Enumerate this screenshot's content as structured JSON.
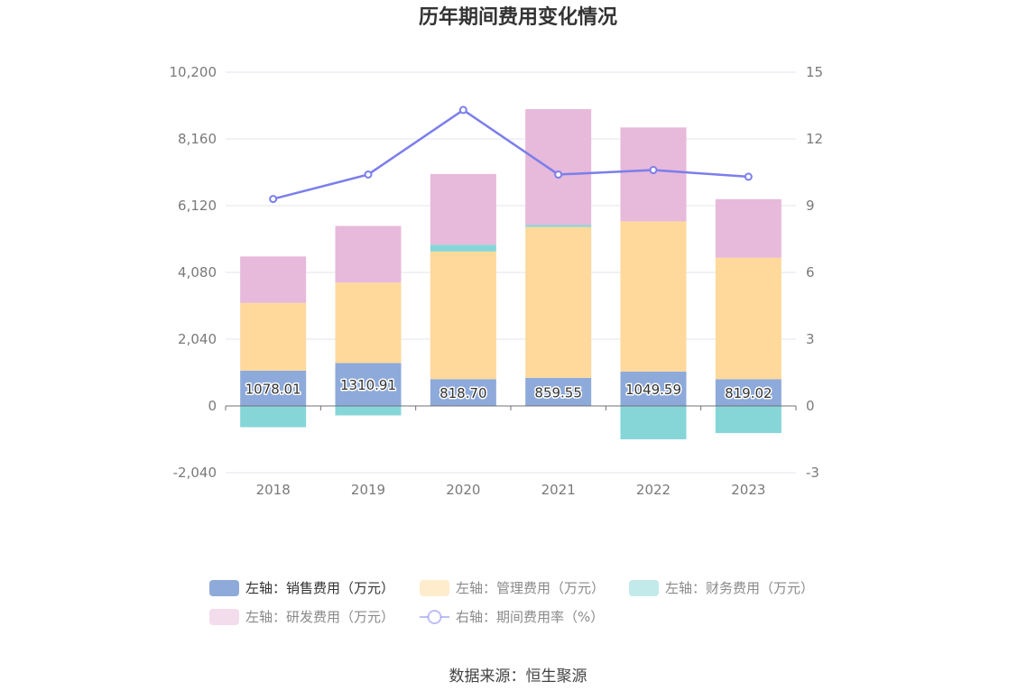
{
  "chart_data": {
    "type": "bar",
    "title": "历年期间费用变化情况",
    "categories": [
      "2018",
      "2019",
      "2020",
      "2021",
      "2022",
      "2023"
    ],
    "left_axis": {
      "ticks": [
        "-2,040",
        "0",
        "2,040",
        "4,080",
        "6,120",
        "8,160",
        "10,200"
      ],
      "range": [
        -2040,
        10200
      ]
    },
    "right_axis": {
      "ticks": [
        "-3",
        "0",
        "3",
        "6",
        "9",
        "12",
        "15"
      ],
      "range": [
        -3,
        15
      ]
    },
    "grid": true,
    "stacked": true,
    "series": [
      {
        "name": "左轴：销售费用（万元）",
        "axis": "left",
        "type": "bar",
        "color": "#8eaadb",
        "values": [
          1078.01,
          1310.91,
          818.7,
          859.55,
          1049.59,
          819.02
        ],
        "labels": [
          "1078.01",
          "1310.91",
          "818.70",
          "859.55",
          "1049.59",
          "819.02"
        ]
      },
      {
        "name": "左轴：管理费用（万元）",
        "axis": "left",
        "type": "bar",
        "color": "#fed99b",
        "values": [
          2070,
          2460,
          3900,
          4610,
          4590,
          3710
        ]
      },
      {
        "name": "左轴：财务费用（万元）",
        "axis": "left",
        "type": "bar",
        "color": "#86d6d8",
        "values": [
          -650,
          -290,
          210,
          60,
          -1020,
          -830
        ]
      },
      {
        "name": "左轴：研发费用（万元）",
        "axis": "left",
        "type": "bar",
        "color": "#e7b9da",
        "values": [
          1420,
          1730,
          2160,
          3540,
          2870,
          1790
        ]
      },
      {
        "name": "右轴：期间费用率（%）",
        "axis": "right",
        "type": "line",
        "color": "#7b7eeb",
        "values": [
          9.3,
          10.4,
          13.3,
          10.4,
          10.6,
          10.3
        ]
      }
    ],
    "legend_position": "bottom"
  },
  "source": "数据来源：恒生聚源"
}
